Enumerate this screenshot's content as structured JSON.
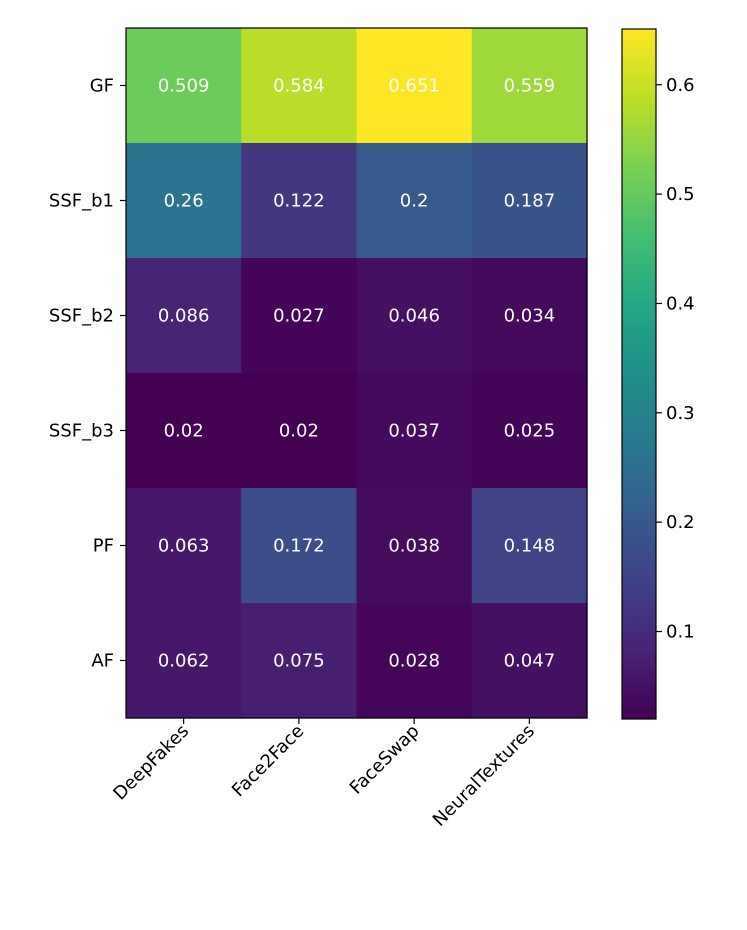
{
  "chart_data": {
    "type": "heatmap",
    "title": "",
    "xlabel": "",
    "ylabel": "",
    "x_categories": [
      "DeepFakes",
      "Face2Face",
      "FaceSwap",
      "NeuralTextures"
    ],
    "y_categories": [
      "GF",
      "SSF_b1",
      "SSF_b2",
      "SSF_b3",
      "PF",
      "AF"
    ],
    "values": [
      [
        0.509,
        0.584,
        0.651,
        0.559
      ],
      [
        0.26,
        0.122,
        0.2,
        0.187
      ],
      [
        0.086,
        0.027,
        0.046,
        0.034
      ],
      [
        0.02,
        0.02,
        0.037,
        0.025
      ],
      [
        0.063,
        0.172,
        0.038,
        0.148
      ],
      [
        0.062,
        0.075,
        0.028,
        0.047
      ]
    ],
    "value_labels": [
      [
        "0.509",
        "0.584",
        "0.651",
        "0.559"
      ],
      [
        "0.26",
        "0.122",
        "0.2",
        "0.187"
      ],
      [
        "0.086",
        "0.027",
        "0.046",
        "0.034"
      ],
      [
        "0.02",
        "0.02",
        "0.037",
        "0.025"
      ],
      [
        "0.063",
        "0.172",
        "0.038",
        "0.148"
      ],
      [
        "0.062",
        "0.075",
        "0.028",
        "0.047"
      ]
    ],
    "colormap": "viridis",
    "colorbar": {
      "range": [
        0.02,
        0.651
      ],
      "ticks": [
        0.1,
        0.2,
        0.3,
        0.4,
        0.5,
        0.6
      ],
      "tick_labels": [
        "0.1",
        "0.2",
        "0.3",
        "0.4",
        "0.5",
        "0.6"
      ]
    },
    "colors": {
      "cell_text": "#ffffff",
      "axis": "#000000"
    }
  }
}
